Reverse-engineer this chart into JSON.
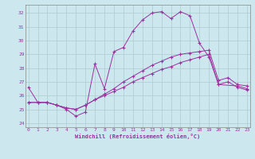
{
  "xlabel": "Windchill (Refroidissement éolien,°C)",
  "line_color": "#9b30a0",
  "bg_color": "#cce8ee",
  "grid_color": "#aacccc",
  "yticks": [
    24,
    25,
    26,
    27,
    28,
    29,
    30,
    31,
    32
  ],
  "xticks": [
    0,
    1,
    2,
    3,
    4,
    5,
    6,
    7,
    8,
    9,
    10,
    11,
    12,
    13,
    14,
    15,
    16,
    17,
    18,
    19,
    20,
    21,
    22,
    23
  ],
  "ylim": [
    23.7,
    32.6
  ],
  "xlim": [
    -0.3,
    23.3
  ],
  "line_a_x": [
    0,
    1,
    2,
    3,
    4,
    5,
    6,
    7,
    8,
    9,
    10,
    11,
    12,
    13,
    14,
    15,
    16,
    17,
    18,
    19,
    20,
    22,
    23
  ],
  "line_a_y": [
    26.6,
    25.5,
    25.5,
    25.3,
    25.0,
    24.5,
    24.8,
    28.3,
    26.5,
    29.2,
    29.5,
    30.7,
    31.5,
    32.0,
    32.1,
    31.6,
    32.1,
    31.8,
    29.8,
    28.8,
    26.8,
    26.7,
    26.5
  ],
  "line_b_x": [
    0,
    1,
    2,
    3,
    4,
    5,
    6,
    7,
    8,
    9,
    10,
    11,
    12,
    13,
    14,
    15,
    16,
    17,
    18,
    19,
    20,
    21,
    22,
    23
  ],
  "line_b_y": [
    25.5,
    25.5,
    25.5,
    25.3,
    25.1,
    25.0,
    25.3,
    25.7,
    26.0,
    26.3,
    26.6,
    27.0,
    27.3,
    27.6,
    27.9,
    28.1,
    28.4,
    28.6,
    28.8,
    29.0,
    26.8,
    27.0,
    26.6,
    26.4
  ],
  "line_c_x": [
    0,
    1,
    2,
    3,
    4,
    5,
    6,
    7,
    8,
    9,
    10,
    11,
    12,
    13,
    14,
    15,
    16,
    17,
    18,
    19,
    20,
    21,
    22,
    23
  ],
  "line_c_y": [
    25.5,
    25.5,
    25.5,
    25.3,
    25.1,
    25.0,
    25.3,
    25.7,
    26.1,
    26.5,
    27.0,
    27.4,
    27.8,
    28.2,
    28.5,
    28.8,
    29.0,
    29.1,
    29.2,
    29.3,
    27.1,
    27.3,
    26.8,
    26.7
  ]
}
